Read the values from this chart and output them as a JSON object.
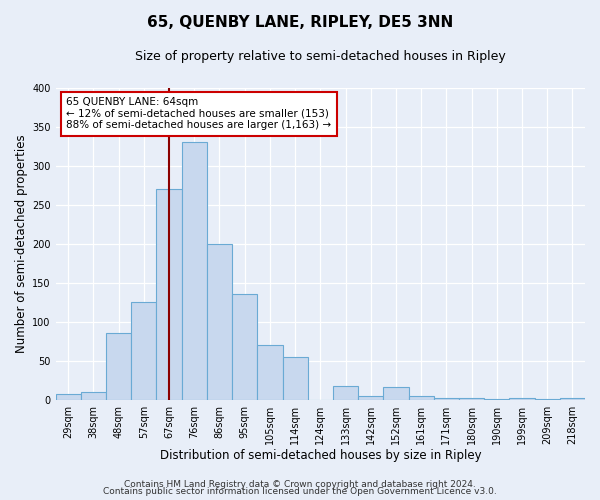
{
  "title": "65, QUENBY LANE, RIPLEY, DE5 3NN",
  "subtitle": "Size of property relative to semi-detached houses in Ripley",
  "xlabel": "Distribution of semi-detached houses by size in Ripley",
  "ylabel": "Number of semi-detached properties",
  "categories": [
    "29sqm",
    "38sqm",
    "48sqm",
    "57sqm",
    "67sqm",
    "76sqm",
    "86sqm",
    "95sqm",
    "105sqm",
    "114sqm",
    "124sqm",
    "133sqm",
    "142sqm",
    "152sqm",
    "161sqm",
    "171sqm",
    "180sqm",
    "190sqm",
    "199sqm",
    "209sqm",
    "218sqm"
  ],
  "values": [
    7,
    10,
    85,
    125,
    270,
    330,
    200,
    135,
    70,
    55,
    0,
    18,
    5,
    16,
    5,
    2,
    2,
    1,
    2,
    1,
    2
  ],
  "bar_color": "#c8d8ee",
  "bar_edge_color": "#6aaad4",
  "marker_line_color": "#8b0000",
  "annotation_title": "65 QUENBY LANE: 64sqm",
  "annotation_line1": "← 12% of semi-detached houses are smaller (153)",
  "annotation_line2": "88% of semi-detached houses are larger (1,163) →",
  "annotation_box_edge": "#cc0000",
  "ylim": [
    0,
    400
  ],
  "yticks": [
    0,
    50,
    100,
    150,
    200,
    250,
    300,
    350,
    400
  ],
  "footer1": "Contains HM Land Registry data © Crown copyright and database right 2024.",
  "footer2": "Contains public sector information licensed under the Open Government Licence v3.0.",
  "bg_color": "#e8eef8",
  "plot_bg_color": "#e8eef8",
  "grid_color": "#ffffff",
  "title_fontsize": 11,
  "subtitle_fontsize": 9,
  "axis_label_fontsize": 8.5,
  "tick_fontsize": 7,
  "footer_fontsize": 6.5,
  "annotation_fontsize": 7.5
}
